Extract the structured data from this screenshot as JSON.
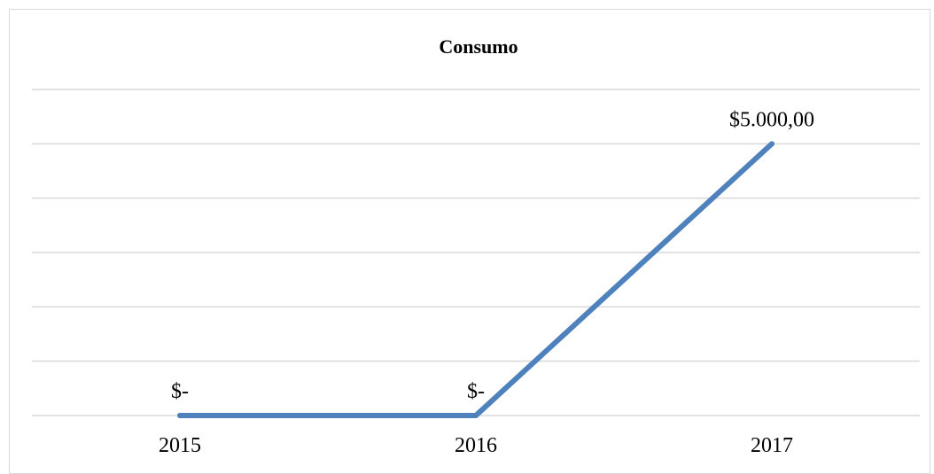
{
  "chart_data": {
    "type": "line",
    "title": "Consumo",
    "xlabel": "",
    "ylabel": "",
    "categories": [
      "2015",
      "2016",
      "2017"
    ],
    "series": [
      {
        "values": [
          0,
          0,
          5000
        ],
        "data_labels": [
          "$-",
          "$-",
          "$5.000,00"
        ],
        "color": "#4f81bd"
      }
    ],
    "ylim": [
      0,
      6000
    ],
    "y_gridlines": [
      0,
      1000,
      2000,
      3000,
      4000,
      5000,
      6000
    ],
    "grid": true,
    "y_axis_labels_shown": false,
    "legend": "none",
    "gridline_color": "#d9d9d9"
  }
}
